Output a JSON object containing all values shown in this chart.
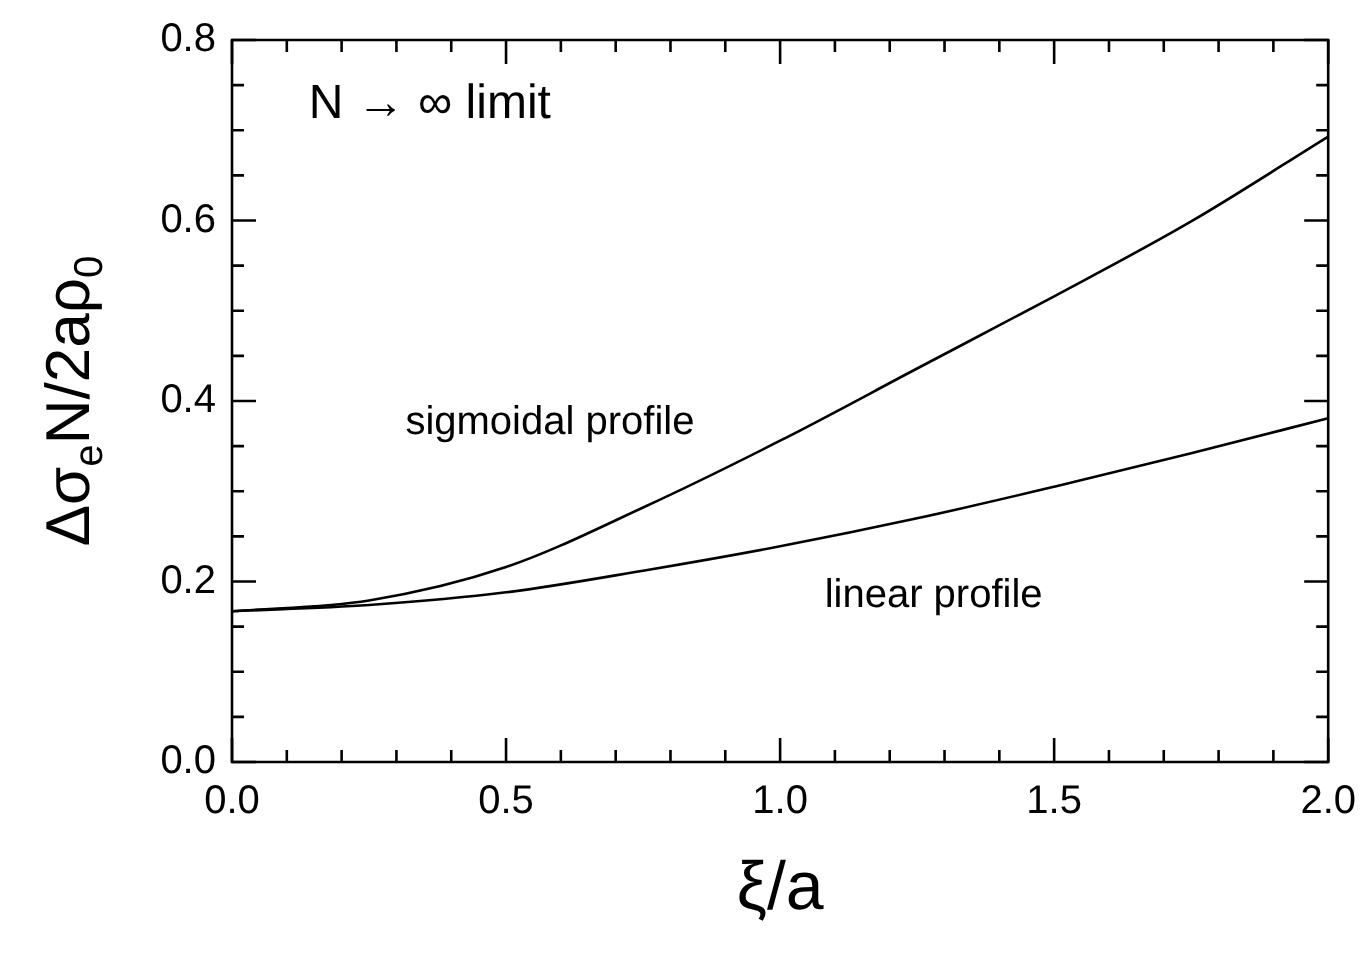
{
  "chart_data": {
    "type": "line",
    "xlabel": "ξ/a",
    "ylabel": "Δσ$_{e}$N/2aρ$_{0}$",
    "x": [
      0,
      0.25,
      0.5,
      0.75,
      1.0,
      1.25,
      1.5,
      1.75,
      2.0
    ],
    "series": [
      {
        "color": "#000000",
        "values": [
          0.167,
          0.179,
          0.216,
          0.282,
          0.356,
          0.436,
          0.516,
          0.599,
          0.693
        ]
      },
      {
        "color": "#000000",
        "values": [
          0.167,
          0.174,
          0.188,
          0.212,
          0.239,
          0.27,
          0.305,
          0.342,
          0.381
        ]
      }
    ],
    "xlim": [
      0,
      2
    ],
    "ylim": [
      0,
      0.8
    ],
    "xticks": [
      {
        "value": 0,
        "label": "0.0"
      },
      {
        "value": 0.1,
        "label": null
      },
      {
        "value": 0.2,
        "label": null
      },
      {
        "value": 0.3,
        "label": null
      },
      {
        "value": 0.4,
        "label": null
      },
      {
        "value": 0.5,
        "label": "0.5"
      },
      {
        "value": 0.6,
        "label": null
      },
      {
        "value": 0.7,
        "label": null
      },
      {
        "value": 0.8,
        "label": null
      },
      {
        "value": 0.9,
        "label": null
      },
      {
        "value": 1,
        "label": "1.0"
      },
      {
        "value": 1.1,
        "label": null
      },
      {
        "value": 1.2,
        "label": null
      },
      {
        "value": 1.3,
        "label": null
      },
      {
        "value": 1.4,
        "label": null
      },
      {
        "value": 1.5,
        "label": "1.5"
      },
      {
        "value": 1.6,
        "label": null
      },
      {
        "value": 1.7,
        "label": null
      },
      {
        "value": 1.8,
        "label": null
      },
      {
        "value": 1.9,
        "label": null
      },
      {
        "value": 2,
        "label": "2.0"
      }
    ],
    "yticks": [
      {
        "value": 0,
        "label": "0.0"
      },
      {
        "value": 0.05,
        "label": null
      },
      {
        "value": 0.1,
        "label": null
      },
      {
        "value": 0.15,
        "label": null
      },
      {
        "value": 0.2,
        "label": "0.2"
      },
      {
        "value": 0.25,
        "label": null
      },
      {
        "value": 0.3,
        "label": null
      },
      {
        "value": 0.35,
        "label": null
      },
      {
        "value": 0.4,
        "label": "0.4"
      },
      {
        "value": 0.45,
        "label": null
      },
      {
        "value": 0.5,
        "label": null
      },
      {
        "value": 0.55,
        "label": null
      },
      {
        "value": 0.6,
        "label": "0.6"
      },
      {
        "value": 0.65,
        "label": null
      },
      {
        "value": 0.7,
        "label": null
      },
      {
        "value": 0.75,
        "label": null
      },
      {
        "value": 0.8,
        "label": "0.8"
      }
    ],
    "grid": false,
    "legend": false,
    "marker": "none",
    "line_style": "solid",
    "annotations": [
      "N → ∞ limit",
      "sigmoidal profile",
      "linear profile"
    ]
  }
}
